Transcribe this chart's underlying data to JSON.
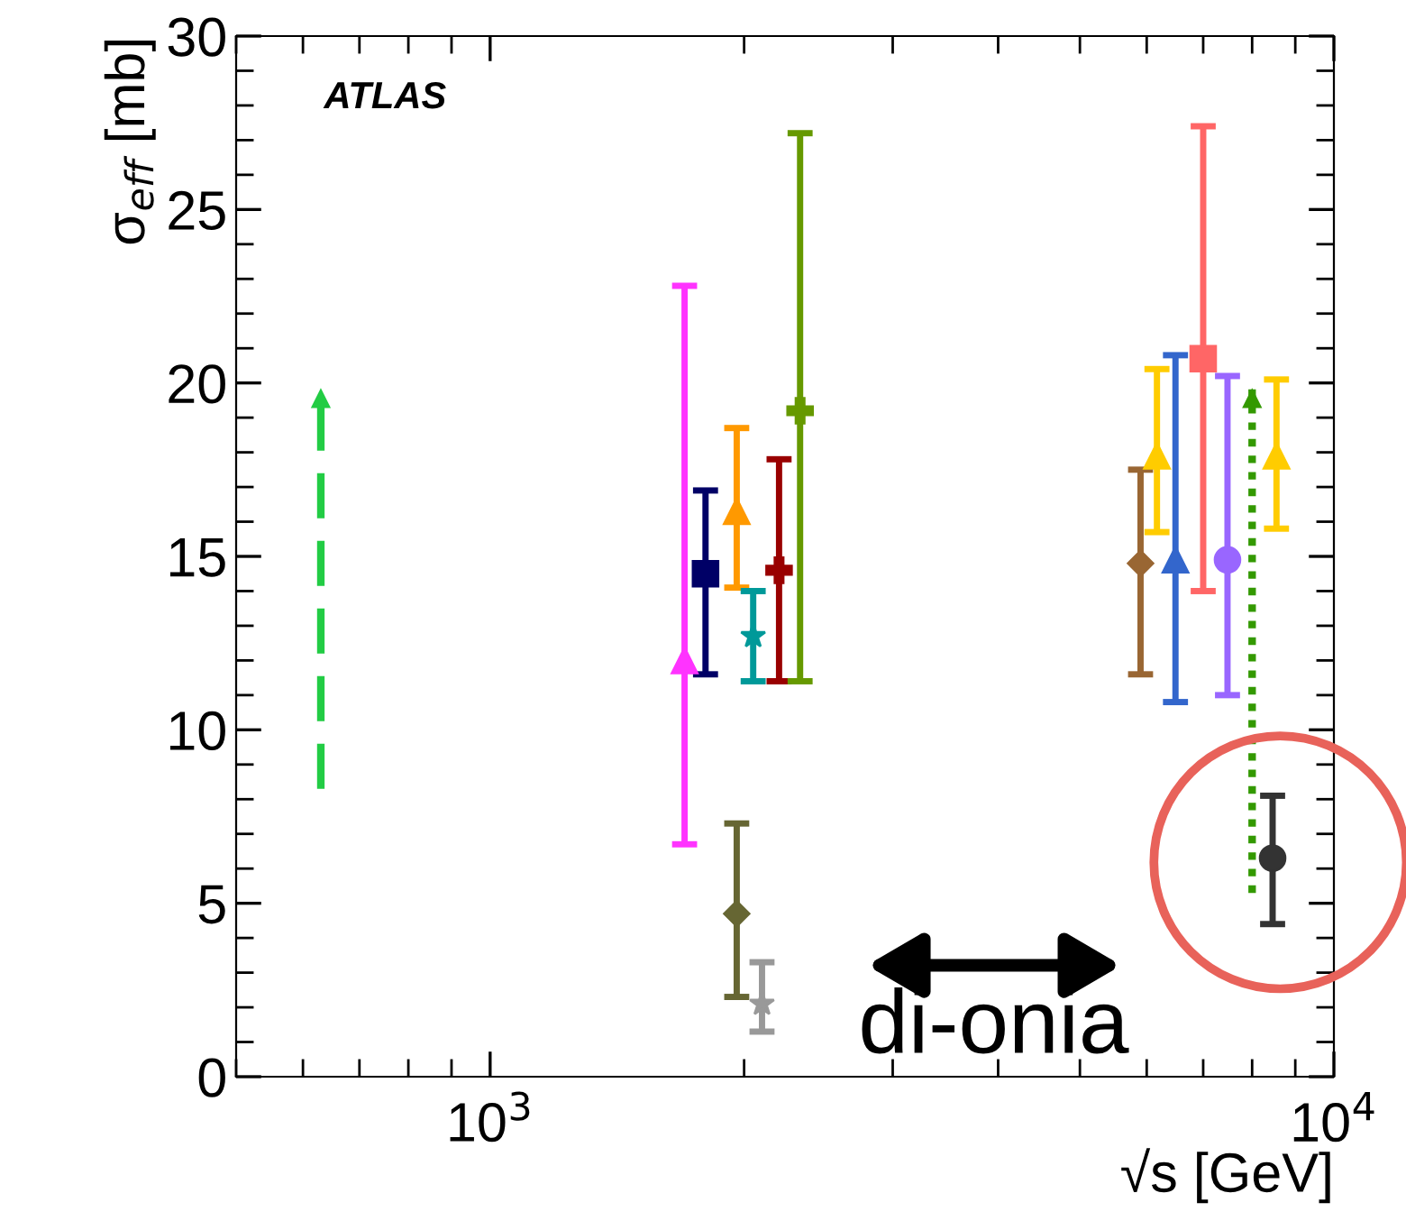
{
  "chart_data": {
    "type": "scatter",
    "xlabel": "√s [GeV]",
    "ylabel": "σ$_{eff}$ [mb]",
    "log": "x",
    "xlim": [
      500,
      10000
    ],
    "xticks": [
      {
        "value": 1000,
        "label": "10$^{3}$"
      },
      {
        "value": 10000,
        "label": "10$^{4}$"
      }
    ],
    "ylim": [
      0,
      30
    ],
    "yticks": [
      0,
      5,
      10,
      15,
      20,
      25,
      30
    ],
    "grid": false,
    "legend": false,
    "annotations": [
      "ATLAS",
      "di-onia"
    ],
    "series": [
      {
        "type": "line",
        "color": "#22cc44",
        "x": [
          630,
          630
        ],
        "values": [
          8.3,
          20
        ],
        "line_style": "dashed"
      },
      {
        "color": "#ff33ff",
        "x": [
          1700
        ],
        "values": [
          12
        ],
        "errors": [
          [
            6.7,
            22.8
          ]
        ],
        "marker": "triangle"
      },
      {
        "color": "#000066",
        "x": [
          1800
        ],
        "values": [
          14.5
        ],
        "errors": [
          [
            11.6,
            16.9
          ]
        ],
        "marker": "square"
      },
      {
        "color": "#ff9900",
        "x": [
          1960
        ],
        "values": [
          16.3
        ],
        "errors": [
          [
            14.1,
            18.7
          ]
        ],
        "marker": "triangle"
      },
      {
        "color": "#666633",
        "x": [
          1960
        ],
        "values": [
          4.7
        ],
        "errors": [
          [
            2.3,
            7.3
          ]
        ],
        "marker": "diamond"
      },
      {
        "color": "#009999",
        "x": [
          2050
        ],
        "values": [
          12.7
        ],
        "errors": [
          [
            11.4,
            14.0
          ]
        ],
        "marker": "star"
      },
      {
        "color": "#999999",
        "x": [
          2100
        ],
        "values": [
          2.1
        ],
        "errors": [
          [
            1.3,
            3.3
          ]
        ],
        "marker": "star"
      },
      {
        "color": "#990000",
        "x": [
          2200
        ],
        "values": [
          14.6
        ],
        "errors": [
          [
            11.4,
            17.8
          ]
        ],
        "marker": "cross"
      },
      {
        "color": "#669900",
        "x": [
          2330
        ],
        "values": [
          19.2
        ],
        "errors": [
          [
            11.4,
            27.2
          ]
        ],
        "marker": "cross"
      },
      {
        "color": "#996633",
        "x": [
          5900
        ],
        "values": [
          14.8
        ],
        "errors": [
          [
            11.6,
            17.5
          ]
        ],
        "marker": "diamond"
      },
      {
        "color": "#ffcc00",
        "x": [
          6170
        ],
        "values": [
          17.9
        ],
        "errors": [
          [
            15.7,
            20.4
          ]
        ],
        "marker": "triangle"
      },
      {
        "color": "#3366cc",
        "x": [
          6490
        ],
        "values": [
          14.9
        ],
        "errors": [
          [
            10.8,
            20.8
          ]
        ],
        "marker": "triangle"
      },
      {
        "color": "#ff6666",
        "x": [
          7000
        ],
        "values": [
          20.7
        ],
        "errors": [
          [
            14.0,
            27.4
          ]
        ],
        "marker": "square"
      },
      {
        "color": "#9966ff",
        "x": [
          7480
        ],
        "values": [
          14.9
        ],
        "errors": [
          [
            11.0,
            20.2
          ]
        ],
        "marker": "circle"
      },
      {
        "type": "line",
        "color": "#339900",
        "x": [
          8000,
          8000
        ],
        "values": [
          5.3,
          20
        ],
        "line_style": "dotted"
      },
      {
        "color": "#ffcc00",
        "x": [
          8550
        ],
        "values": [
          17.9
        ],
        "errors": [
          [
            15.8,
            20.1
          ]
        ],
        "marker": "triangle"
      },
      {
        "color": "#333333",
        "x": [
          8460
        ],
        "values": [
          6.3
        ],
        "errors": [
          [
            4.4,
            8.1
          ]
        ],
        "marker": "circle"
      }
    ]
  }
}
